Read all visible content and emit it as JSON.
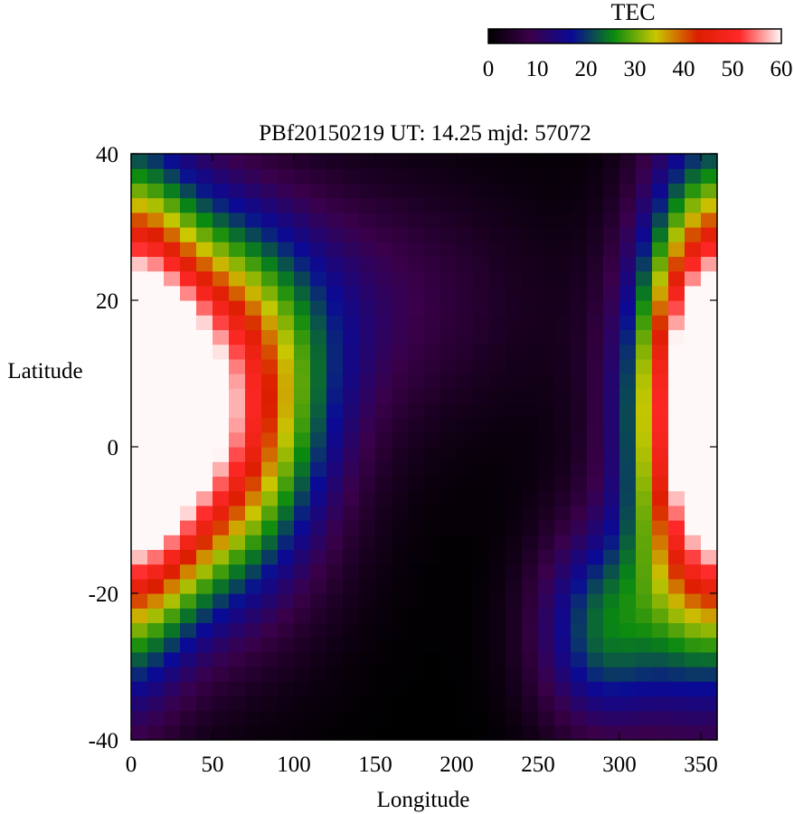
{
  "chart_data": {
    "type": "heatmap",
    "title": "PBf20150219  UT: 14.25  mjd: 57072",
    "xlabel": "Longitude",
    "ylabel": "Latitude",
    "xlim": [
      0,
      360
    ],
    "ylim": [
      -40,
      40
    ],
    "x_ticks": [
      "0",
      "50",
      "100",
      "150",
      "200",
      "250",
      "300",
      "350"
    ],
    "y_ticks": [
      "-40",
      "-20",
      "0",
      "20",
      "40"
    ],
    "colorbar": {
      "label": "TEC",
      "range": [
        0,
        60
      ],
      "ticks": [
        "0",
        "10",
        "20",
        "30",
        "40",
        "50",
        "60"
      ],
      "colormap": [
        "#000000",
        "#3a004a",
        "#0a0a96",
        "#0a8a10",
        "#c8c800",
        "#dc1e00",
        "#ff2828",
        "#fff8f8"
      ]
    },
    "grid_lon_step": 10,
    "grid_lat_step": 2,
    "features": [
      {
        "lon": 40,
        "lat": 5,
        "peak": 60,
        "slon": 50,
        "slat": 17
      },
      {
        "lon": 355,
        "lat": 5,
        "peak": 54,
        "slon": 28,
        "slat": 22
      },
      {
        "lon": 290,
        "lat": -25,
        "peak": 22,
        "slon": 30,
        "slat": 10
      },
      {
        "lon": 150,
        "lat": 20,
        "peak": 8,
        "slon": 70,
        "slat": 12
      }
    ]
  }
}
